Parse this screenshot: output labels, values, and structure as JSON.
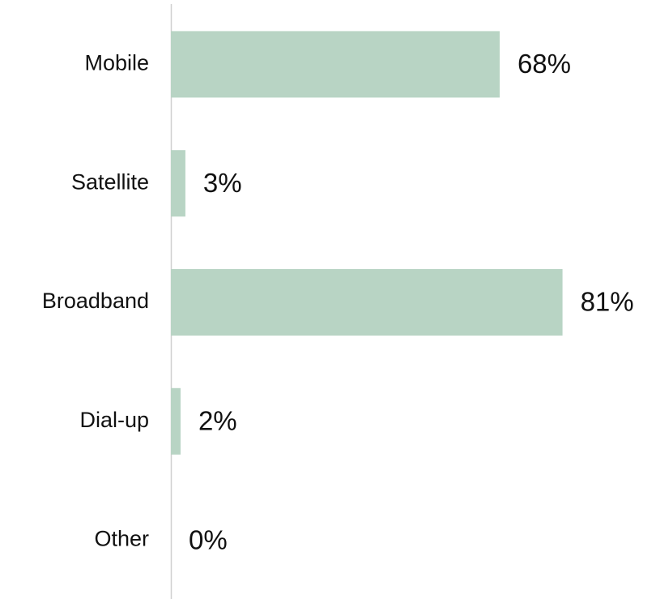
{
  "chart_data": {
    "type": "hbar",
    "categories": [
      "Mobile",
      "Satellite",
      "Broadband",
      "Dial-up",
      "Other"
    ],
    "values": [
      68,
      3,
      81,
      2,
      0
    ],
    "value_labels": [
      "68%",
      "3%",
      "81%",
      "2%",
      "0%"
    ],
    "color": "#b8d4c4",
    "xlim": [
      0,
      100
    ]
  }
}
